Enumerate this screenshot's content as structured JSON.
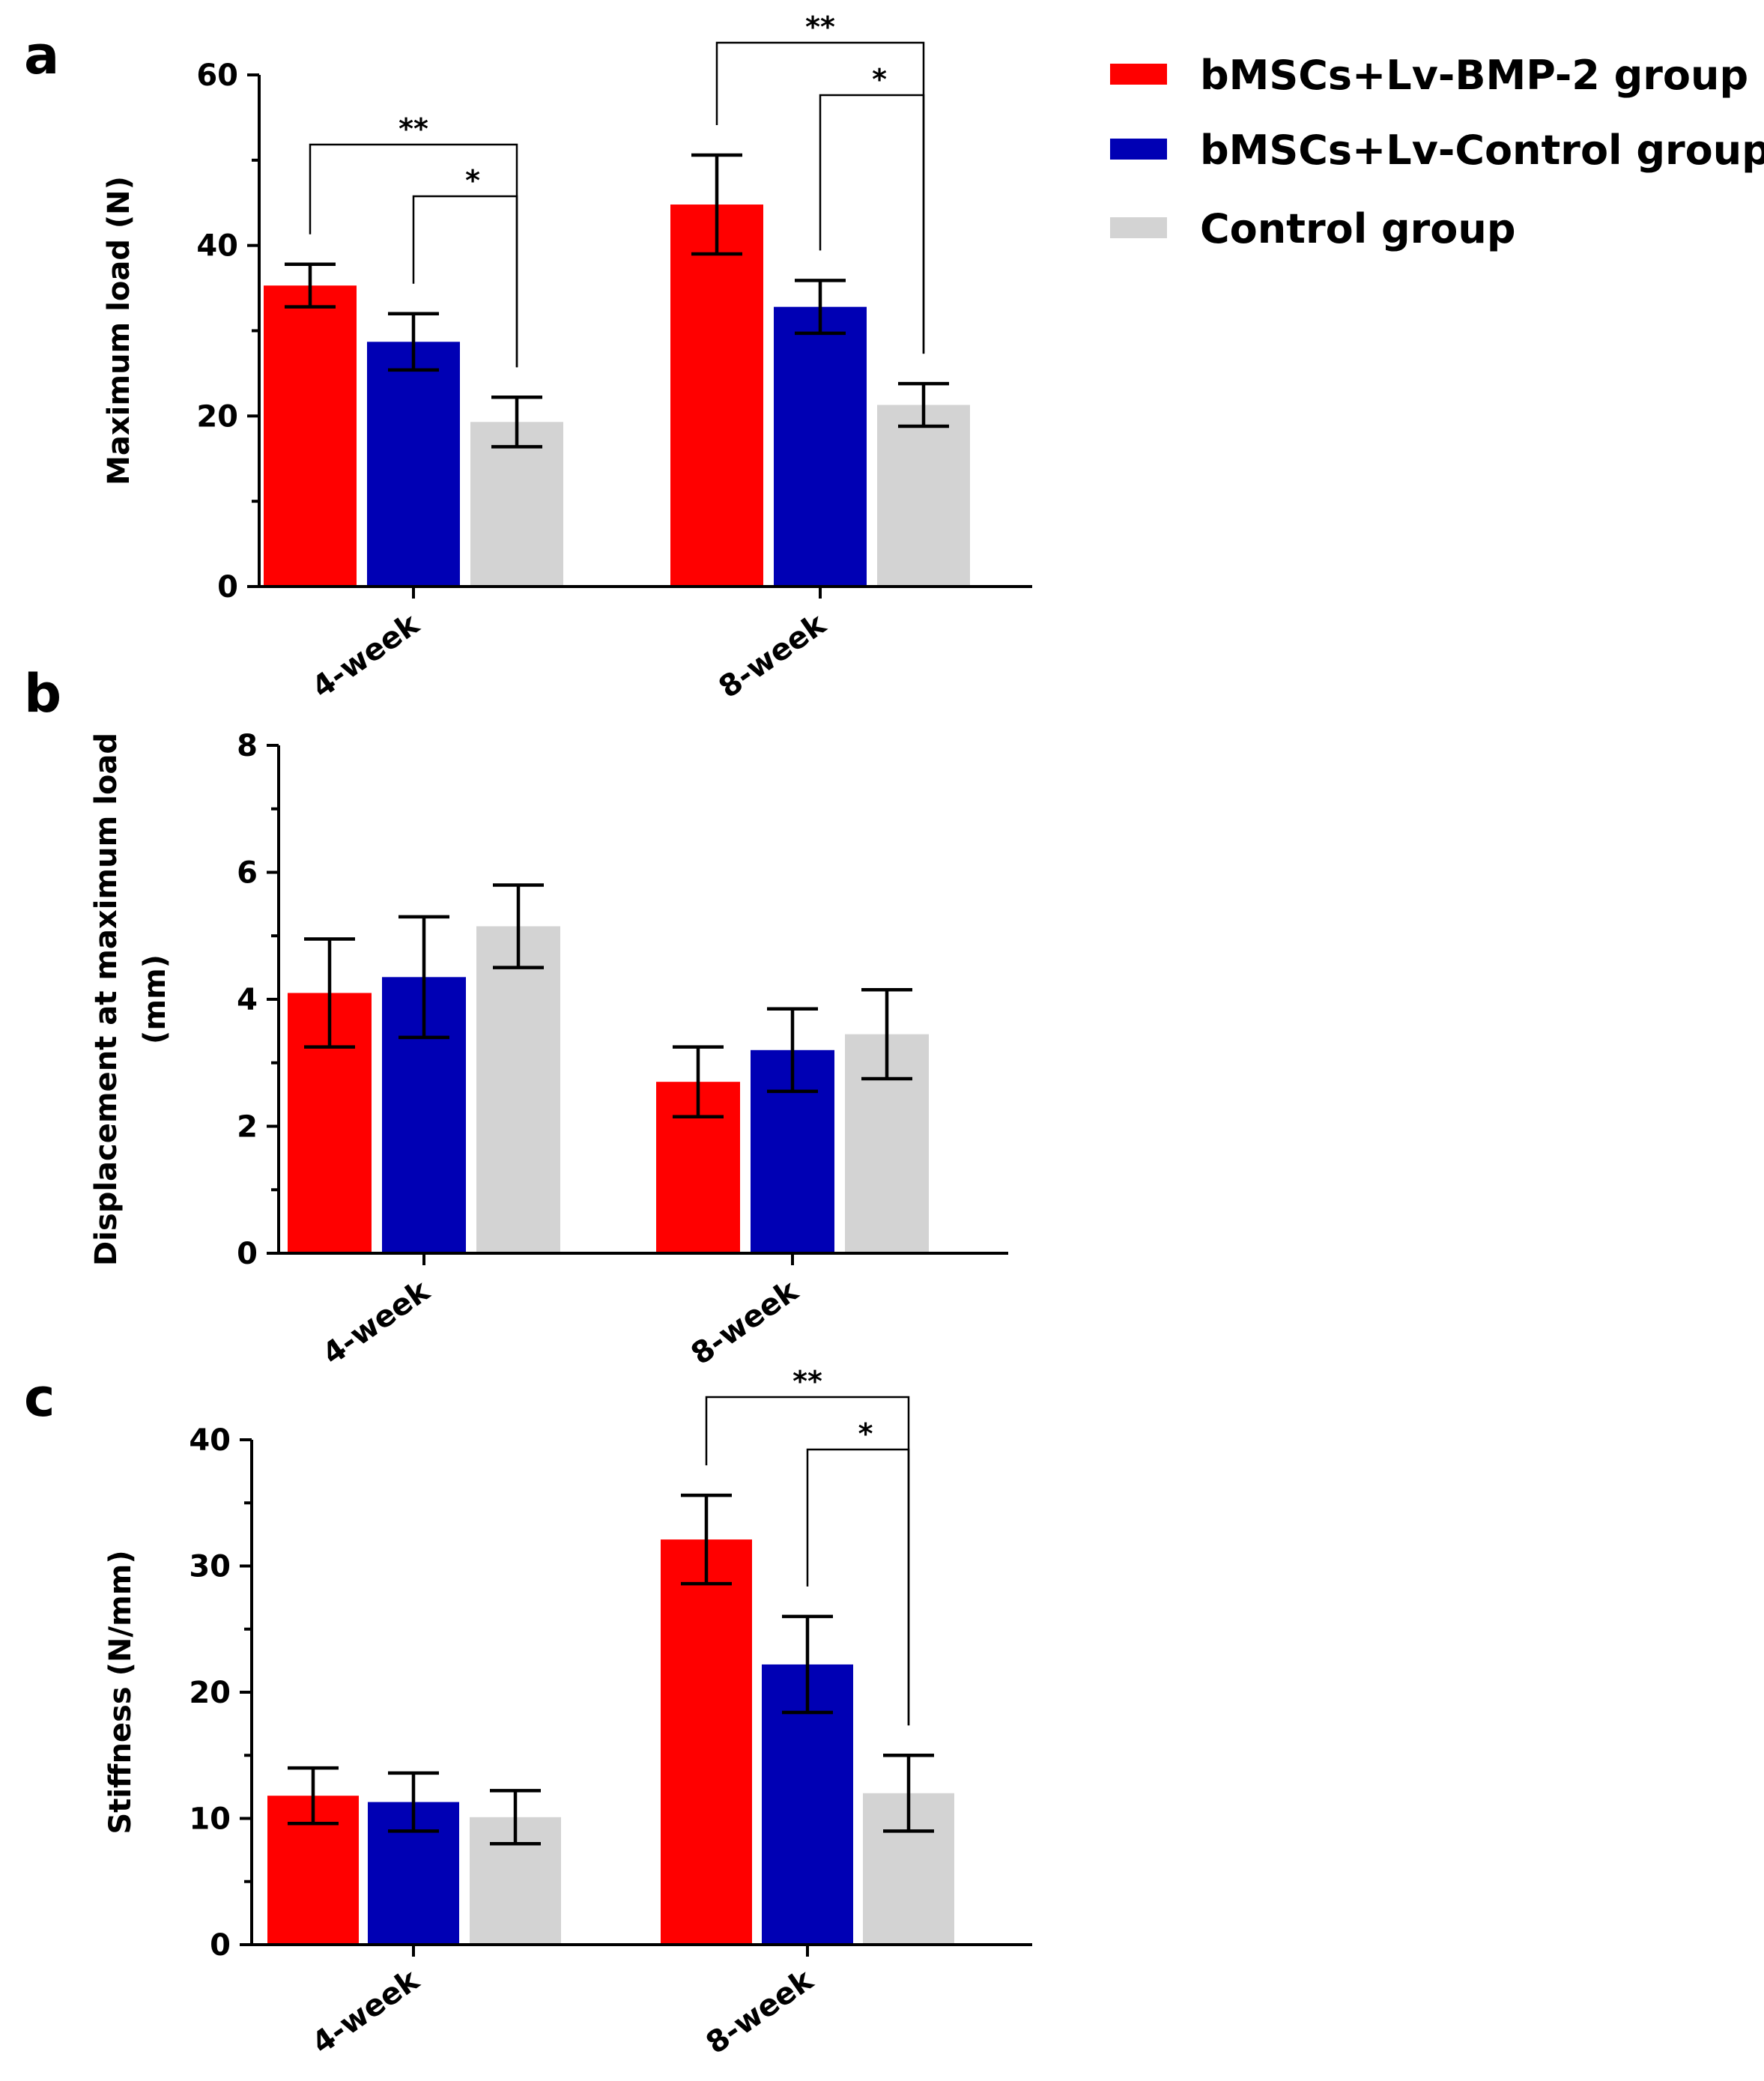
{
  "colors": {
    "bmp2": "#ff0000",
    "control_lv": "#0000b4",
    "control": "#d3d3d3"
  },
  "legend": [
    {
      "label": "bMSCs+Lv-BMP-2 group",
      "color": "#ff0000"
    },
    {
      "label": "bMSCs+Lv-Control group",
      "color": "#0000b4"
    },
    {
      "label": "Control group",
      "color": "#d3d3d3"
    }
  ],
  "chart_data": [
    {
      "panel": "a",
      "type": "bar",
      "ylabel": "Maximum load (N)",
      "ylim": [
        0,
        60
      ],
      "yticks": [
        0,
        20,
        40,
        60
      ],
      "categories": [
        "4-week",
        "8-week"
      ],
      "series": [
        {
          "name": "bMSCs+Lv-BMP-2 group",
          "values": [
            35.3,
            44.8
          ],
          "errors": [
            2.5,
            5.8
          ]
        },
        {
          "name": "bMSCs+Lv-Control group",
          "values": [
            28.7,
            32.8
          ],
          "errors": [
            3.3,
            3.1
          ]
        },
        {
          "name": "Control group",
          "values": [
            19.3,
            21.3
          ],
          "errors": [
            2.9,
            2.5
          ]
        }
      ],
      "significance": [
        {
          "category": "4-week",
          "from": 0,
          "to": 2,
          "label": "**"
        },
        {
          "category": "4-week",
          "from": 1,
          "to": 2,
          "label": "*"
        },
        {
          "category": "8-week",
          "from": 0,
          "to": 2,
          "label": "**"
        },
        {
          "category": "8-week",
          "from": 1,
          "to": 2,
          "label": "*"
        }
      ]
    },
    {
      "panel": "b",
      "type": "bar",
      "ylabel": "Displacement at maximum load (mm)",
      "ylabel_lines": [
        "Displacement at maximum load",
        "(mm)"
      ],
      "ylim": [
        0,
        8
      ],
      "yticks": [
        0,
        2,
        4,
        6,
        8
      ],
      "categories": [
        "4-week",
        "8-week"
      ],
      "series": [
        {
          "name": "bMSCs+Lv-BMP-2 group",
          "values": [
            4.1,
            2.7
          ],
          "errors": [
            0.85,
            0.55
          ]
        },
        {
          "name": "bMSCs+Lv-Control group",
          "values": [
            4.35,
            3.2
          ],
          "errors": [
            0.95,
            0.65
          ]
        },
        {
          "name": "Control group",
          "values": [
            5.15,
            3.45
          ],
          "errors": [
            0.65,
            0.7
          ]
        }
      ],
      "significance": []
    },
    {
      "panel": "c",
      "type": "bar",
      "ylabel": "Stiffness (N/mm)",
      "ylim": [
        0,
        40
      ],
      "yticks": [
        0,
        10,
        20,
        30,
        40
      ],
      "categories": [
        "4-week",
        "8-week"
      ],
      "series": [
        {
          "name": "bMSCs+Lv-BMP-2 group",
          "values": [
            11.8,
            32.1
          ],
          "errors": [
            2.2,
            3.5
          ]
        },
        {
          "name": "bMSCs+Lv-Control group",
          "values": [
            11.3,
            22.2
          ],
          "errors": [
            2.3,
            3.8
          ]
        },
        {
          "name": "Control group",
          "values": [
            10.1,
            12.0
          ],
          "errors": [
            2.1,
            3.0
          ]
        }
      ],
      "significance": [
        {
          "category": "8-week",
          "from": 0,
          "to": 2,
          "label": "**"
        },
        {
          "category": "8-week",
          "from": 1,
          "to": 2,
          "label": "*"
        }
      ]
    }
  ]
}
